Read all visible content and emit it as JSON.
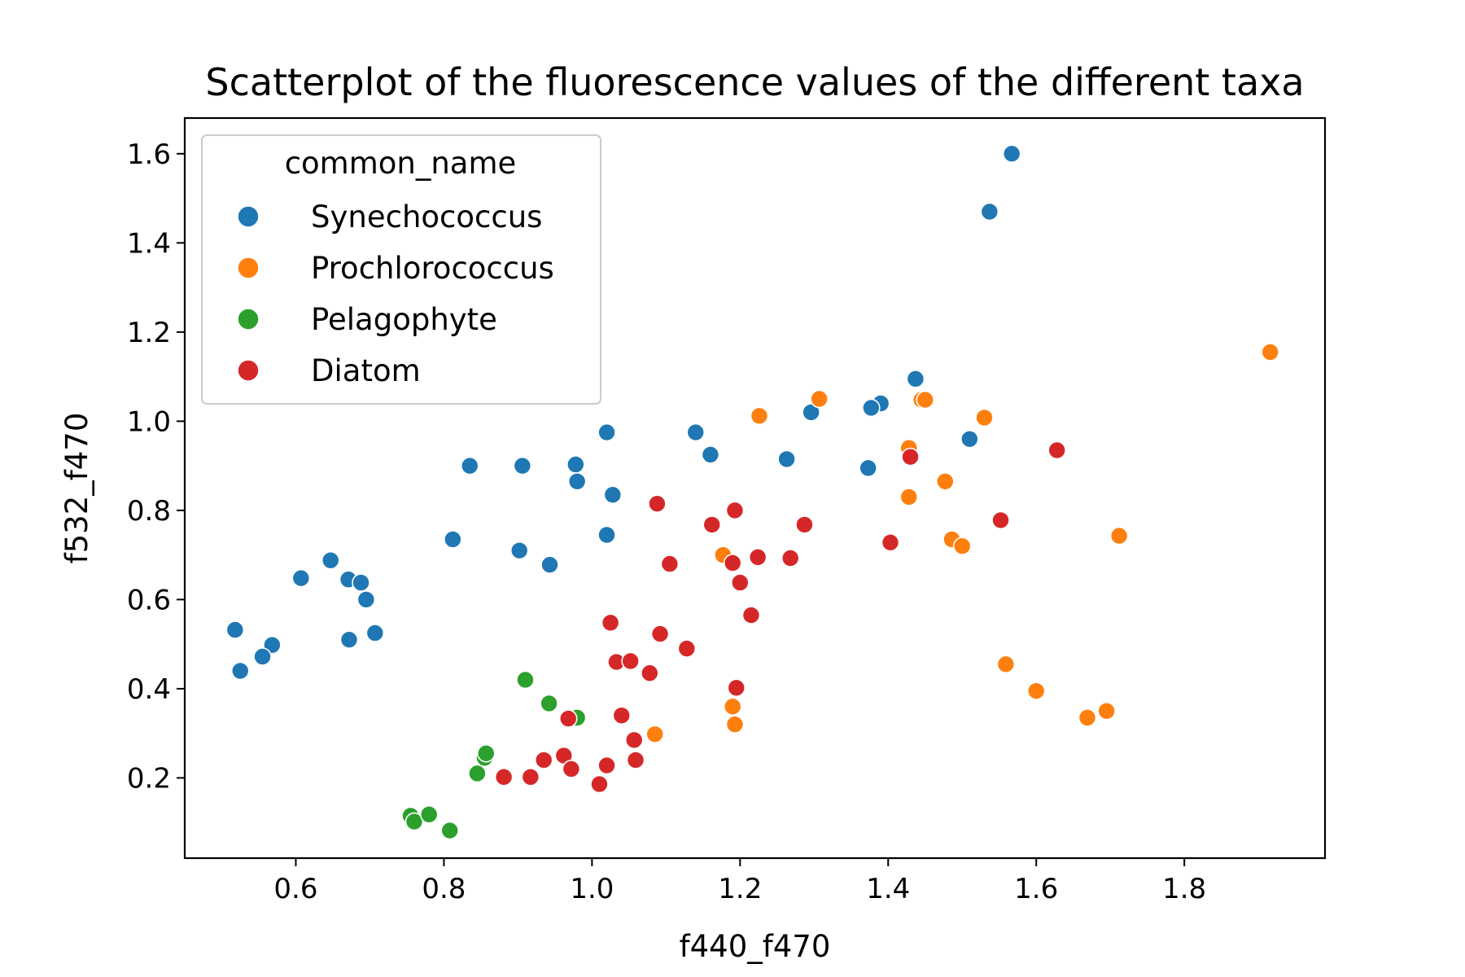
{
  "chart_data": {
    "type": "scatter",
    "title": "Scatterplot of the fluorescence values of the different taxa",
    "xlabel": "f440_f470",
    "ylabel": "f532_f470",
    "xlim": [
      0.45,
      1.99
    ],
    "ylim": [
      0.02,
      1.68
    ],
    "xticks": [
      0.6,
      0.8,
      1.0,
      1.2,
      1.4,
      1.6,
      1.8
    ],
    "xtick_labels": [
      "0.6",
      "0.8",
      "1.0",
      "1.2",
      "1.4",
      "1.6",
      "1.8"
    ],
    "yticks": [
      0.2,
      0.4,
      0.6,
      0.8,
      1.0,
      1.2,
      1.4,
      1.6
    ],
    "ytick_labels": [
      "0.2",
      "0.4",
      "0.6",
      "0.8",
      "1.0",
      "1.2",
      "1.4",
      "1.6"
    ],
    "grid": false,
    "legend": {
      "title": "common_name",
      "placement": "top-left"
    },
    "series": [
      {
        "name": "Synechococcus",
        "color": "#1f77b4",
        "points": [
          [
            1.567,
            1.6
          ],
          [
            1.537,
            1.47
          ],
          [
            1.437,
            1.095
          ],
          [
            1.39,
            1.04
          ],
          [
            1.377,
            1.03
          ],
          [
            1.296,
            1.02
          ],
          [
            1.51,
            0.96
          ],
          [
            1.02,
            0.975
          ],
          [
            1.14,
            0.975
          ],
          [
            1.16,
            0.925
          ],
          [
            1.263,
            0.915
          ],
          [
            1.373,
            0.895
          ],
          [
            0.835,
            0.9
          ],
          [
            0.906,
            0.9
          ],
          [
            0.978,
            0.903
          ],
          [
            0.98,
            0.865
          ],
          [
            1.028,
            0.835
          ],
          [
            0.812,
            0.735
          ],
          [
            1.02,
            0.745
          ],
          [
            0.902,
            0.71
          ],
          [
            0.943,
            0.678
          ],
          [
            0.607,
            0.648
          ],
          [
            0.647,
            0.688
          ],
          [
            0.671,
            0.645
          ],
          [
            0.688,
            0.638
          ],
          [
            0.695,
            0.6
          ],
          [
            0.518,
            0.532
          ],
          [
            0.672,
            0.51
          ],
          [
            0.707,
            0.525
          ],
          [
            0.568,
            0.498
          ],
          [
            0.555,
            0.472
          ],
          [
            0.525,
            0.44
          ]
        ]
      },
      {
        "name": "Prochlorococcus",
        "color": "#ff7f0e",
        "points": [
          [
            1.916,
            1.155
          ],
          [
            1.307,
            1.05
          ],
          [
            1.445,
            1.048
          ],
          [
            1.45,
            1.048
          ],
          [
            1.226,
            1.012
          ],
          [
            1.53,
            1.008
          ],
          [
            1.428,
            0.94
          ],
          [
            1.428,
            0.83
          ],
          [
            1.477,
            0.865
          ],
          [
            1.486,
            0.735
          ],
          [
            1.5,
            0.72
          ],
          [
            1.712,
            0.743
          ],
          [
            1.177,
            0.7
          ],
          [
            1.559,
            0.455
          ],
          [
            1.6,
            0.395
          ],
          [
            1.669,
            0.335
          ],
          [
            1.695,
            0.35
          ],
          [
            1.19,
            0.36
          ],
          [
            1.193,
            0.32
          ],
          [
            1.085,
            0.298
          ]
        ]
      },
      {
        "name": "Pelagophyte",
        "color": "#2ca02c",
        "points": [
          [
            0.91,
            0.42
          ],
          [
            0.942,
            0.367
          ],
          [
            0.98,
            0.335
          ],
          [
            0.855,
            0.245
          ],
          [
            0.857,
            0.255
          ],
          [
            0.845,
            0.21
          ],
          [
            0.755,
            0.115
          ],
          [
            0.76,
            0.102
          ],
          [
            0.78,
            0.118
          ],
          [
            0.808,
            0.082
          ]
        ]
      },
      {
        "name": "Diatom",
        "color": "#d62728",
        "points": [
          [
            1.628,
            0.935
          ],
          [
            1.43,
            0.92
          ],
          [
            1.088,
            0.815
          ],
          [
            1.193,
            0.8
          ],
          [
            1.162,
            0.768
          ],
          [
            1.287,
            0.768
          ],
          [
            1.552,
            0.778
          ],
          [
            1.403,
            0.728
          ],
          [
            1.105,
            0.68
          ],
          [
            1.19,
            0.682
          ],
          [
            1.224,
            0.695
          ],
          [
            1.268,
            0.693
          ],
          [
            1.2,
            0.638
          ],
          [
            1.215,
            0.565
          ],
          [
            1.025,
            0.548
          ],
          [
            1.092,
            0.523
          ],
          [
            1.128,
            0.49
          ],
          [
            1.033,
            0.46
          ],
          [
            1.052,
            0.462
          ],
          [
            1.078,
            0.435
          ],
          [
            1.195,
            0.402
          ],
          [
            0.968,
            0.333
          ],
          [
            1.04,
            0.34
          ],
          [
            1.057,
            0.285
          ],
          [
            0.935,
            0.24
          ],
          [
            0.962,
            0.25
          ],
          [
            0.972,
            0.22
          ],
          [
            1.02,
            0.228
          ],
          [
            1.059,
            0.24
          ],
          [
            0.881,
            0.202
          ],
          [
            0.917,
            0.202
          ],
          [
            1.01,
            0.186
          ]
        ]
      }
    ]
  }
}
